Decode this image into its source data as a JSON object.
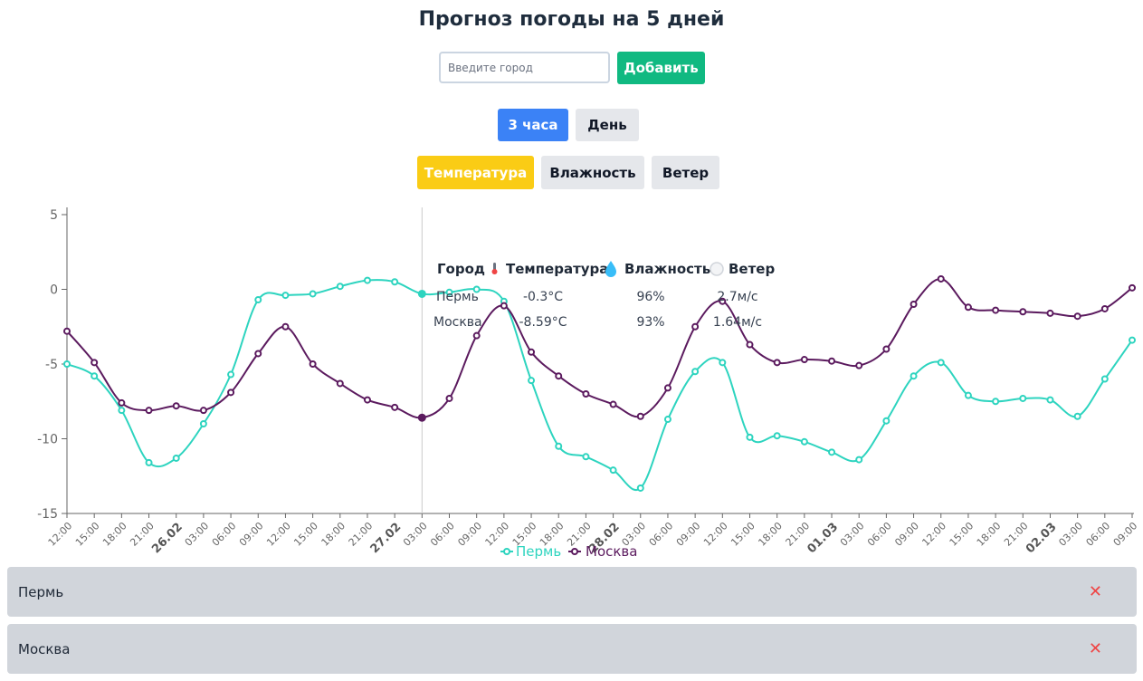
{
  "header": {
    "title": "Прогноз погоды на 5 дней"
  },
  "search": {
    "placeholder": "Введите город",
    "value": ""
  },
  "buttons": {
    "add": "Добавить",
    "step_3h": "3 часа",
    "step_day": "День",
    "metric_temperature": "Температура",
    "metric_humidity": "Влажность",
    "metric_wind": "Ветер"
  },
  "colors": {
    "add": "#10b981",
    "active_step": "#3b82f6",
    "active_metric": "#facc15",
    "inactive": "#e5e7eb",
    "perm": "#2dd4bf",
    "moscow": "#5b1a5e",
    "remove": "#ef4444"
  },
  "chart_data": {
    "type": "line",
    "categories": [
      "12:00",
      "15:00",
      "18:00",
      "21:00",
      "26.02",
      "03:00",
      "06:00",
      "09:00",
      "12:00",
      "15:00",
      "18:00",
      "21:00",
      "27.02",
      "03:00",
      "06:00",
      "09:00",
      "12:00",
      "15:00",
      "18:00",
      "21:00",
      "28.02",
      "03:00",
      "06:00",
      "09:00",
      "12:00",
      "15:00",
      "18:00",
      "21:00",
      "01.03",
      "03:00",
      "06:00",
      "09:00",
      "12:00",
      "15:00",
      "18:00",
      "21:00",
      "02.03",
      "03:00",
      "06:00",
      "09:00"
    ],
    "date_ticks": [
      "26.02",
      "27.02",
      "28.02",
      "01.03",
      "02.03"
    ],
    "series": [
      {
        "name": "Пермь",
        "color": "#2dd4bf",
        "values": [
          -5.0,
          -5.8,
          -8.1,
          -11.6,
          -11.3,
          -9.0,
          -5.7,
          -0.7,
          -0.4,
          -0.3,
          0.2,
          0.6,
          0.5,
          -0.3,
          -0.2,
          0.0,
          -0.8,
          -6.1,
          -10.5,
          -11.2,
          -12.1,
          -13.3,
          -8.7,
          -5.5,
          -4.9,
          -9.9,
          -9.8,
          -10.2,
          -10.9,
          -11.4,
          -8.8,
          -5.8,
          -4.9,
          -7.1,
          -7.5,
          -7.3,
          -7.4,
          -8.5,
          -6.0,
          -3.4
        ]
      },
      {
        "name": "Москва",
        "color": "#5b1a5e",
        "values": [
          -2.8,
          -4.9,
          -7.6,
          -8.1,
          -7.8,
          -8.1,
          -6.9,
          -4.3,
          -2.5,
          -5.0,
          -6.3,
          -7.4,
          -7.9,
          -8.59,
          -7.3,
          -3.1,
          -1.1,
          -4.2,
          -5.8,
          -7.0,
          -7.7,
          -8.5,
          -6.6,
          -2.5,
          -0.8,
          -3.7,
          -4.9,
          -4.7,
          -4.8,
          -5.1,
          -4.0,
          -1.0,
          0.7,
          -1.2,
          -1.4,
          -1.5,
          -1.6,
          -1.8,
          -1.3,
          0.1
        ]
      }
    ],
    "yticks": [
      5,
      0,
      -5,
      -10,
      -15
    ],
    "ylim": [
      -15,
      5
    ],
    "legend_position": "bottom",
    "tooltip": {
      "index": 13,
      "headers": [
        "Город",
        "Температура",
        "Влажность",
        "Ветер"
      ],
      "rows": [
        {
          "city": "Пермь",
          "temp": "-0.3°C",
          "humidity": "96%",
          "wind": "2.7м/с"
        },
        {
          "city": "Москва",
          "temp": "-8.59°C",
          "humidity": "93%",
          "wind": "1.64м/с"
        }
      ]
    }
  },
  "cities": [
    {
      "name": "Пермь",
      "remove": "✕"
    },
    {
      "name": "Москва",
      "remove": "✕"
    }
  ]
}
